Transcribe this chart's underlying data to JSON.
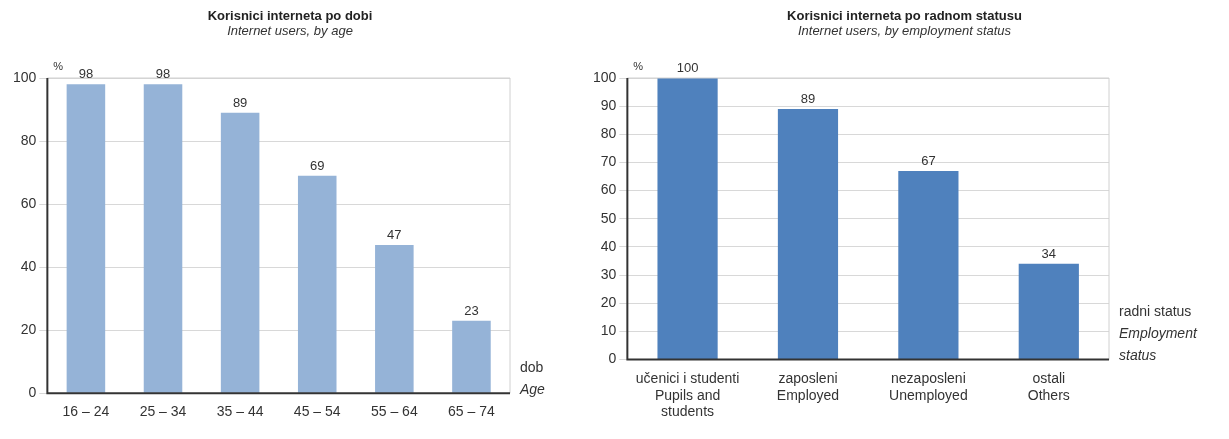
{
  "chart_data": [
    {
      "type": "bar",
      "title": "Korisnici interneta po dobi",
      "subtitle": "Internet users, by age",
      "ylabel": "%",
      "xlabel": "dob\nAge",
      "categories": [
        "16 – 24",
        "25 – 34",
        "35 – 44",
        "45 – 54",
        "55 – 64",
        "65 – 74"
      ],
      "values": [
        98,
        98,
        89,
        69,
        47,
        23
      ],
      "color": "#95b3d7",
      "ylim": [
        0,
        100
      ],
      "yticks": [
        0,
        20,
        40,
        60,
        80,
        100
      ],
      "grid": "y",
      "data_labels": true,
      "legend": false
    },
    {
      "type": "bar",
      "title": "Korisnici interneta po radnom statusu",
      "subtitle": "Internet users, by employment status",
      "ylabel": "%",
      "xlabel": "radni status\nEmployment\nstatus",
      "categories": [
        "učenici i studenti\nPupils and\nstudents",
        "zaposleni\nEmployed",
        "nezaposleni\nUnemployed",
        "ostali\nOthers"
      ],
      "values": [
        100,
        89,
        67,
        34
      ],
      "color": "#4f81bd",
      "ylim": [
        0,
        100
      ],
      "yticks": [
        0,
        10,
        20,
        30,
        40,
        50,
        60,
        70,
        80,
        90,
        100
      ],
      "grid": "y",
      "data_labels": true,
      "legend": false
    }
  ]
}
